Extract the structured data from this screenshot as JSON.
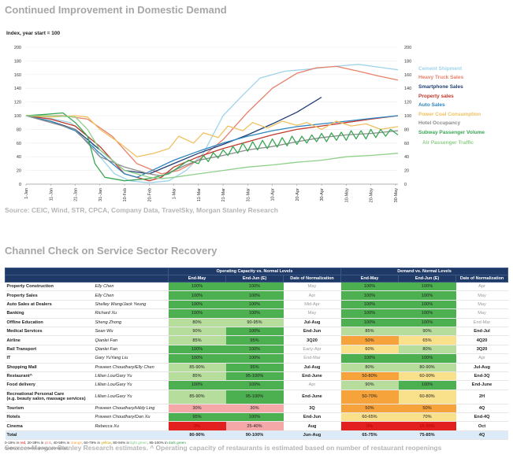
{
  "chart": {
    "title": "Continued Improvement in Domestic Demand",
    "source": "Source: CEIC, Wind, STR, CPCA, Company Data, TravelSky, Morgan Stanley Research"
  },
  "chart_data": {
    "type": "line",
    "ylabel": "Index, year start = 100",
    "ylim": [
      0,
      200
    ],
    "yticks": [
      0,
      20,
      40,
      60,
      80,
      100,
      120,
      140,
      160,
      180,
      200
    ],
    "x_ticks": [
      "1-Jan",
      "11-Jan",
      "21-Jan",
      "31-Jan",
      "10-Feb",
      "20-Feb",
      "1-Mar",
      "11-Mar",
      "21-Mar",
      "31-Mar",
      "10-Apr",
      "20-Apr",
      "30-Apr",
      "10-May",
      "20-May",
      "30-May"
    ],
    "x_positions_days": [
      0,
      10,
      20,
      30,
      40,
      50,
      60,
      70,
      80,
      90,
      100,
      110,
      120,
      130,
      140,
      150
    ],
    "xlim": [
      0,
      151
    ],
    "legend_position": "right",
    "series": [
      {
        "name": "Cement Shipment",
        "color": "#9fd3ea",
        "x": [
          0,
          10,
          18,
          25,
          30,
          36,
          42,
          50,
          58,
          65,
          72,
          80,
          88,
          95,
          105,
          115,
          125,
          135,
          145,
          151
        ],
        "y": [
          100,
          96,
          90,
          70,
          40,
          15,
          5,
          2,
          5,
          20,
          45,
          100,
          130,
          155,
          165,
          168,
          172,
          175,
          170,
          167
        ]
      },
      {
        "name": "Heavy Truck Sales",
        "color": "#e8806a",
        "x": [
          0,
          15,
          25,
          35,
          45,
          55,
          62,
          70,
          80,
          90,
          100,
          110,
          118,
          126,
          135,
          143,
          151
        ],
        "y": [
          100,
          100,
          95,
          70,
          30,
          15,
          20,
          35,
          65,
          105,
          140,
          162,
          170,
          172,
          165,
          158,
          152
        ]
      },
      {
        "name": "Smartphone Sales",
        "color": "#1f3f72",
        "x": [
          0,
          10,
          20,
          30,
          40,
          50,
          60,
          70,
          80,
          90,
          100,
          110,
          120
        ],
        "y": [
          100,
          92,
          80,
          50,
          20,
          15,
          30,
          45,
          58,
          72,
          88,
          105,
          127
        ]
      },
      {
        "name": "Property sales",
        "color": "#c0392b",
        "x": [
          0,
          10,
          20,
          30,
          40,
          50,
          55,
          60,
          70,
          80,
          90,
          100,
          110,
          120,
          130,
          140,
          151
        ],
        "y": [
          100,
          95,
          85,
          55,
          15,
          5,
          10,
          25,
          40,
          52,
          62,
          72,
          80,
          85,
          90,
          95,
          100
        ]
      },
      {
        "name": "Auto Sales",
        "color": "#2e86c1",
        "x": [
          0,
          10,
          20,
          30,
          40,
          45,
          50,
          60,
          70,
          80,
          90,
          100,
          110,
          120,
          130,
          140,
          151
        ],
        "y": [
          100,
          92,
          78,
          45,
          15,
          10,
          18,
          35,
          48,
          60,
          70,
          78,
          84,
          88,
          92,
          96,
          100
        ]
      },
      {
        "name": "Power Coal Consumption",
        "color": "#f0c060",
        "x": [
          0,
          10,
          20,
          25,
          30,
          38,
          45,
          52,
          58,
          62,
          68,
          72,
          78,
          82,
          88,
          92,
          98,
          104,
          110,
          114,
          120,
          126,
          132,
          138,
          144,
          151
        ],
        "y": [
          100,
          98,
          100,
          98,
          80,
          60,
          40,
          45,
          52,
          70,
          60,
          75,
          68,
          85,
          78,
          90,
          82,
          92,
          86,
          90,
          80,
          92,
          85,
          88,
          80,
          84
        ]
      },
      {
        "name": "Hotel Occupancy",
        "color": "#8c8c8c",
        "x": [
          0,
          10,
          20,
          25,
          30,
          40,
          50,
          55,
          60,
          65,
          70,
          80,
          90,
          100,
          110,
          120,
          130,
          140,
          151
        ],
        "y": [
          100,
          90,
          80,
          60,
          40,
          25,
          15,
          12,
          20,
          28,
          35,
          42,
          50,
          55,
          62,
          68,
          72,
          74,
          78
        ]
      },
      {
        "name": "Subway Passenger Volume",
        "color": "#3aa655",
        "x": [
          0,
          8,
          15,
          20,
          25,
          28,
          32,
          40,
          50,
          58,
          62,
          66,
          70,
          72,
          74,
          76,
          78,
          80,
          82,
          84,
          86,
          88,
          90,
          92,
          94,
          96,
          98,
          100,
          102,
          104,
          106,
          108,
          110,
          112,
          114,
          116,
          118,
          120,
          122,
          124,
          126,
          128,
          130,
          132,
          134,
          136,
          138,
          140,
          142,
          144,
          146,
          148,
          151
        ],
        "y": [
          100,
          102,
          104,
          90,
          70,
          30,
          10,
          5,
          8,
          15,
          25,
          35,
          30,
          42,
          33,
          46,
          38,
          50,
          42,
          55,
          45,
          60,
          48,
          62,
          50,
          64,
          52,
          66,
          54,
          68,
          56,
          70,
          58,
          70,
          60,
          72,
          62,
          74,
          62,
          75,
          64,
          76,
          64,
          78,
          66,
          78,
          66,
          80,
          68,
          80,
          70,
          80,
          72
        ]
      },
      {
        "name": "Air Passenger Traffic",
        "color": "#8fd08a",
        "x": [
          0,
          10,
          20,
          25,
          30,
          40,
          50,
          55,
          60,
          70,
          80,
          90,
          100,
          110,
          120,
          130,
          140,
          151
        ],
        "y": [
          100,
          100,
          98,
          80,
          50,
          20,
          10,
          8,
          10,
          15,
          20,
          25,
          28,
          32,
          35,
          40,
          42,
          45
        ]
      }
    ]
  },
  "table": {
    "title": "Channel Check on Service Sector Recovery",
    "group_headers": [
      "Operating Capacity vs. Normal Levels",
      "Demand vs. Normal Levels"
    ],
    "col_headers": [
      "End-May",
      "End-Jun (E)",
      "Date of Normalization",
      "End-May",
      "End-Jun (E)",
      "Date of Normalization"
    ],
    "rows": [
      {
        "sector": "Property Construction",
        "analyst": "Elly Chen",
        "op_may": "100%",
        "op_jun": "100%",
        "op_date": "May",
        "dm_may": "100%",
        "dm_jun": "100%",
        "dm_date": "Apr"
      },
      {
        "sector": "Property Sales",
        "analyst": "Elly Chen",
        "op_may": "100%",
        "op_jun": "100%",
        "op_date": "Apr",
        "dm_may": "100%",
        "dm_jun": "100%",
        "dm_date": "May"
      },
      {
        "sector": "Auto Sales at Dealers",
        "analyst": "Shelley Wang/Jack Yeung",
        "op_may": "100%",
        "op_jun": "100%",
        "op_date": "Mid-Apr",
        "dm_may": "100%",
        "dm_jun": "100%",
        "dm_date": "May"
      },
      {
        "sector": "Banking",
        "analyst": "Richard Xu",
        "op_may": "100%",
        "op_jun": "100%",
        "op_date": "May",
        "dm_may": "100%",
        "dm_jun": "100%",
        "dm_date": "May"
      },
      {
        "sector": "Offline Education",
        "analyst": "Sheng Zhong",
        "op_may": "80%",
        "op_jun": "90-95%",
        "op_date": "Jul-Aug",
        "dm_may": "100%",
        "dm_jun": "100%",
        "dm_date": "End-Mar"
      },
      {
        "sector": "Medical Services",
        "analyst": "Sean Wu",
        "op_may": "90%",
        "op_jun": "100%",
        "op_date": "End-Jun",
        "dm_may": "85%",
        "dm_jun": "90%",
        "dm_date": "End-Jul"
      },
      {
        "sector": "Airline",
        "analyst": "Qianlei Fan",
        "op_may": "85%",
        "op_jun": "95%",
        "op_date": "3Q20",
        "dm_may": "50%",
        "dm_jun": "65%",
        "dm_date": "4Q20"
      },
      {
        "sector": "Rail Transport",
        "analyst": "Qianlei Fan",
        "op_may": "100%",
        "op_jun": "100%",
        "op_date": "Early-Apr",
        "dm_may": "60%",
        "dm_jun": "80%",
        "dm_date": "3Q20"
      },
      {
        "sector": "IT",
        "analyst": "Gary YuYang Liu",
        "op_may": "100%",
        "op_jun": "100%",
        "op_date": "End-Mar",
        "dm_may": "100%",
        "dm_jun": "100%",
        "dm_date": "Apr"
      },
      {
        "sector": "Shopping Mall",
        "analyst": "Praveen Choudhary/Elly Chen",
        "op_may": "85-90%",
        "op_jun": "95%",
        "op_date": "Jul-Aug",
        "dm_may": "80%",
        "dm_jun": "80-90%",
        "dm_date": "Jul-Aug"
      },
      {
        "sector": "Restaurant^",
        "analyst": "Lillian Lou/Gary Yu",
        "op_may": "85%",
        "op_jun": "95-100%",
        "op_date": "End-June",
        "dm_may": "50-80%",
        "dm_jun": "60-90%",
        "dm_date": "End-3Q"
      },
      {
        "sector": "Food delivery",
        "analyst": "Lillian Lou/Gary Yu",
        "op_may": "100%",
        "op_jun": "100%",
        "op_date": "Apr",
        "dm_may": "90%",
        "dm_jun": "100%",
        "dm_date": "End-June"
      },
      {
        "sector": "Recreational Personal Care",
        "sector2": "(e.g. beauty salon, massage services)",
        "analyst": "Lillian Lou/Gary Yu",
        "op_may": "85-90%",
        "op_jun": "95-100%",
        "op_date": "End-June",
        "dm_may": "50-70%",
        "dm_jun": "60-80%",
        "dm_date": "2H"
      },
      {
        "sector": "Tourism",
        "analyst": "Praveen Choudhary/Hildy Ling",
        "op_may": "30%",
        "op_jun": "30%",
        "op_date": "3Q",
        "dm_may": "50%",
        "dm_jun": "50%",
        "dm_date": "4Q"
      },
      {
        "sector": "Hotels",
        "analyst": "Praveen Choudhary/Dan Xu",
        "op_may": "95%",
        "op_jun": "100%",
        "op_date": "End-Jun",
        "dm_may": "60-65%",
        "dm_jun": "70%",
        "dm_date": "End-4Q"
      },
      {
        "sector": "Cinema",
        "analyst": "Rebecca Xu",
        "op_may": "0%",
        "op_jun": "25-40%",
        "op_date": "Aug",
        "dm_may": "0%",
        "dm_jun": "15-30%",
        "dm_date": "Oct"
      }
    ],
    "total": {
      "label": "Total",
      "op_may": "80-90%",
      "op_jun": "90-100%",
      "op_date": "Jun-Aug",
      "dm_may": "65-75%",
      "dm_jun": "75-85%",
      "dm_date": "4Q"
    },
    "legend_parts": [
      "0-19% in ",
      "red",
      ", 20-39% in ",
      "pink",
      ", 40-59% in ",
      "orange",
      ", 60-79% in ",
      "yellow",
      ", 80-94% in ",
      "light green",
      ", 95-100% in ",
      "dark green"
    ],
    "legend_note_parts": [
      "Dates in ",
      "grey",
      " mean already normalized"
    ],
    "source": "Source: Morgan Stanley Research estimates. ^ Operating capacity of restaurants is estimated based on number of restaurant reopenings"
  },
  "colors": {
    "dark_green": "#4caf50",
    "light_green": "#b7dd9c",
    "yellow": "#f9e08a",
    "orange": "#f7a33c",
    "pink": "#f4a8a8",
    "red": "#e32020",
    "header_navy": "#1f3a66",
    "total_bg": "#dcebf7"
  }
}
